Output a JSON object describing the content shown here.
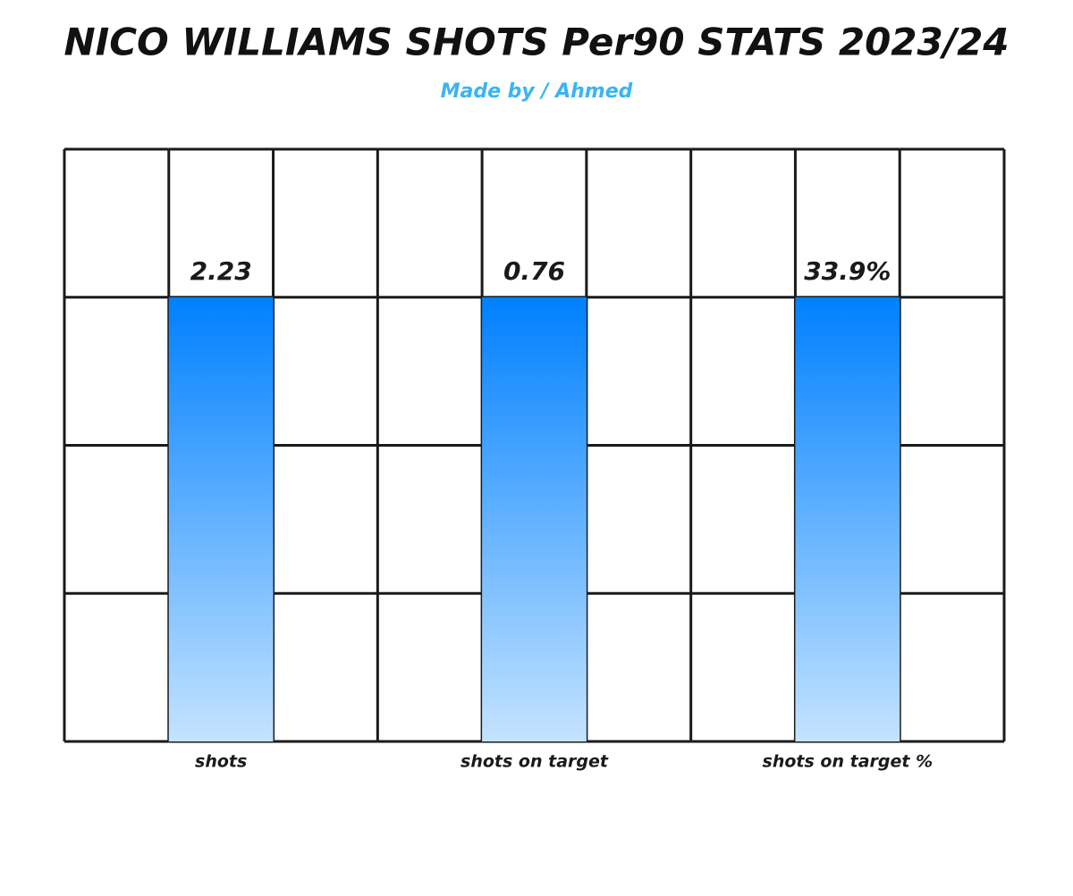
{
  "header": {
    "title": "NICO WILLIAMS SHOTS Per90 STATS 2023/24",
    "subtitle": "Made by / Ahmed"
  },
  "items": [
    {
      "label": "shots",
      "value": "2.23"
    },
    {
      "label": "shots on target",
      "value": "0.76"
    },
    {
      "label": "shots on target %",
      "value": "33.9%"
    }
  ]
}
